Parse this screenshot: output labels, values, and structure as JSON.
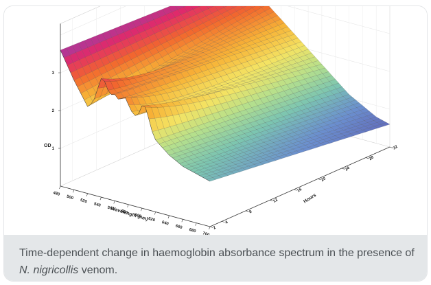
{
  "caption": {
    "before": "Time-dependent change in haemoglobin absorbance spectrum in the presence of ",
    "italic": "N. nigricollis",
    "after": " venom."
  },
  "chart_data": {
    "type": "surface",
    "title": "",
    "zlabel": "OD",
    "xlabel": "Wavelength (nm)",
    "ylabel": "Hours",
    "x_ticks": [
      480,
      500,
      520,
      540,
      560,
      580,
      600,
      620,
      640,
      660,
      680,
      700
    ],
    "y_ticks": [
      2,
      4,
      8,
      12,
      16,
      20,
      24,
      28,
      32
    ],
    "z_ticks": [
      1,
      2,
      3
    ],
    "xlim": [
      480,
      700
    ],
    "ylim": [
      2,
      32
    ],
    "zlim": [
      0,
      4
    ],
    "colormap": [
      "#8e3fb8",
      "#e02a6a",
      "#f2672e",
      "#f7b437",
      "#f4e363",
      "#b6e08c",
      "#7cc5b1",
      "#6b8fcf",
      "#5f64b7"
    ],
    "series_description_values": {
      "wavelength_nm": [
        480,
        500,
        520,
        540,
        560,
        580,
        600,
        620,
        640,
        660,
        680,
        700
      ],
      "od_at_start": [
        3.6,
        2.9,
        2.3,
        2.6,
        2.8,
        2.2,
        2.5,
        1.9,
        1.6,
        1.4,
        1.3,
        1.2
      ],
      "od_at_end": [
        3.4,
        3.1,
        2.9,
        2.6,
        2.3,
        2.0,
        1.7,
        1.4,
        1.1,
        0.9,
        0.7,
        0.6
      ]
    }
  }
}
